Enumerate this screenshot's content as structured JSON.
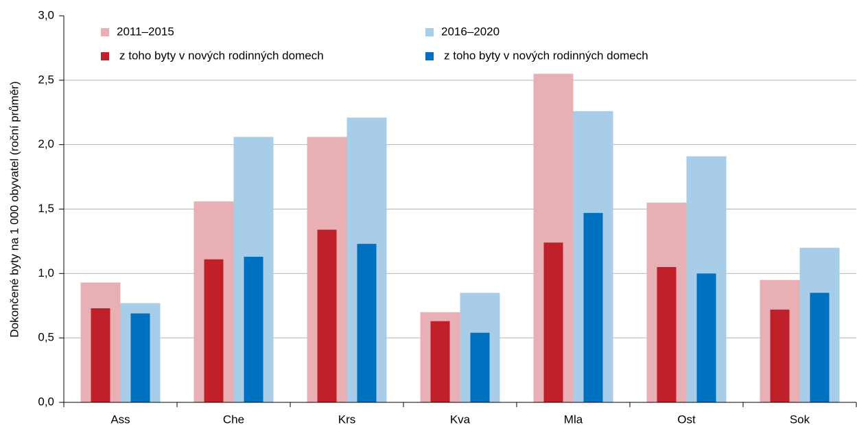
{
  "chart_data": {
    "type": "bar",
    "y_label": "Dokončené byty na 1 000 obyvatel (roční průměr)",
    "categories": [
      "Ass",
      "Che",
      "Krs",
      "Kva",
      "Mla",
      "Ost",
      "Sok"
    ],
    "series": [
      {
        "name": "2011–2015",
        "color": "#e8b0b4",
        "values": [
          0.93,
          1.56,
          2.06,
          0.7,
          2.55,
          1.55,
          0.95
        ]
      },
      {
        "name": "2016–2020",
        "color": "#a8cde8",
        "values": [
          0.77,
          2.06,
          2.21,
          0.85,
          2.26,
          1.91,
          1.2
        ]
      },
      {
        "name": "z toho byty v nových rodinných domech",
        "color": "#c0202a",
        "values": [
          0.73,
          1.11,
          1.34,
          0.63,
          1.24,
          1.05,
          0.72
        ]
      },
      {
        "name": "z toho byty v nových rodinných domech",
        "color": "#0070c0",
        "values": [
          0.69,
          1.13,
          1.23,
          0.54,
          1.47,
          1.0,
          0.85
        ]
      }
    ],
    "ylim": [
      0,
      3
    ],
    "yticks": [
      {
        "value": 0,
        "label": "0,0"
      },
      {
        "value": 0.5,
        "label": "0,5"
      },
      {
        "value": 1,
        "label": "1,0"
      },
      {
        "value": 1.5,
        "label": "1,5"
      },
      {
        "value": 2,
        "label": "2,0"
      },
      {
        "value": 2.5,
        "label": "2,5"
      },
      {
        "value": 3,
        "label": "3,0"
      }
    ],
    "grid": true
  }
}
